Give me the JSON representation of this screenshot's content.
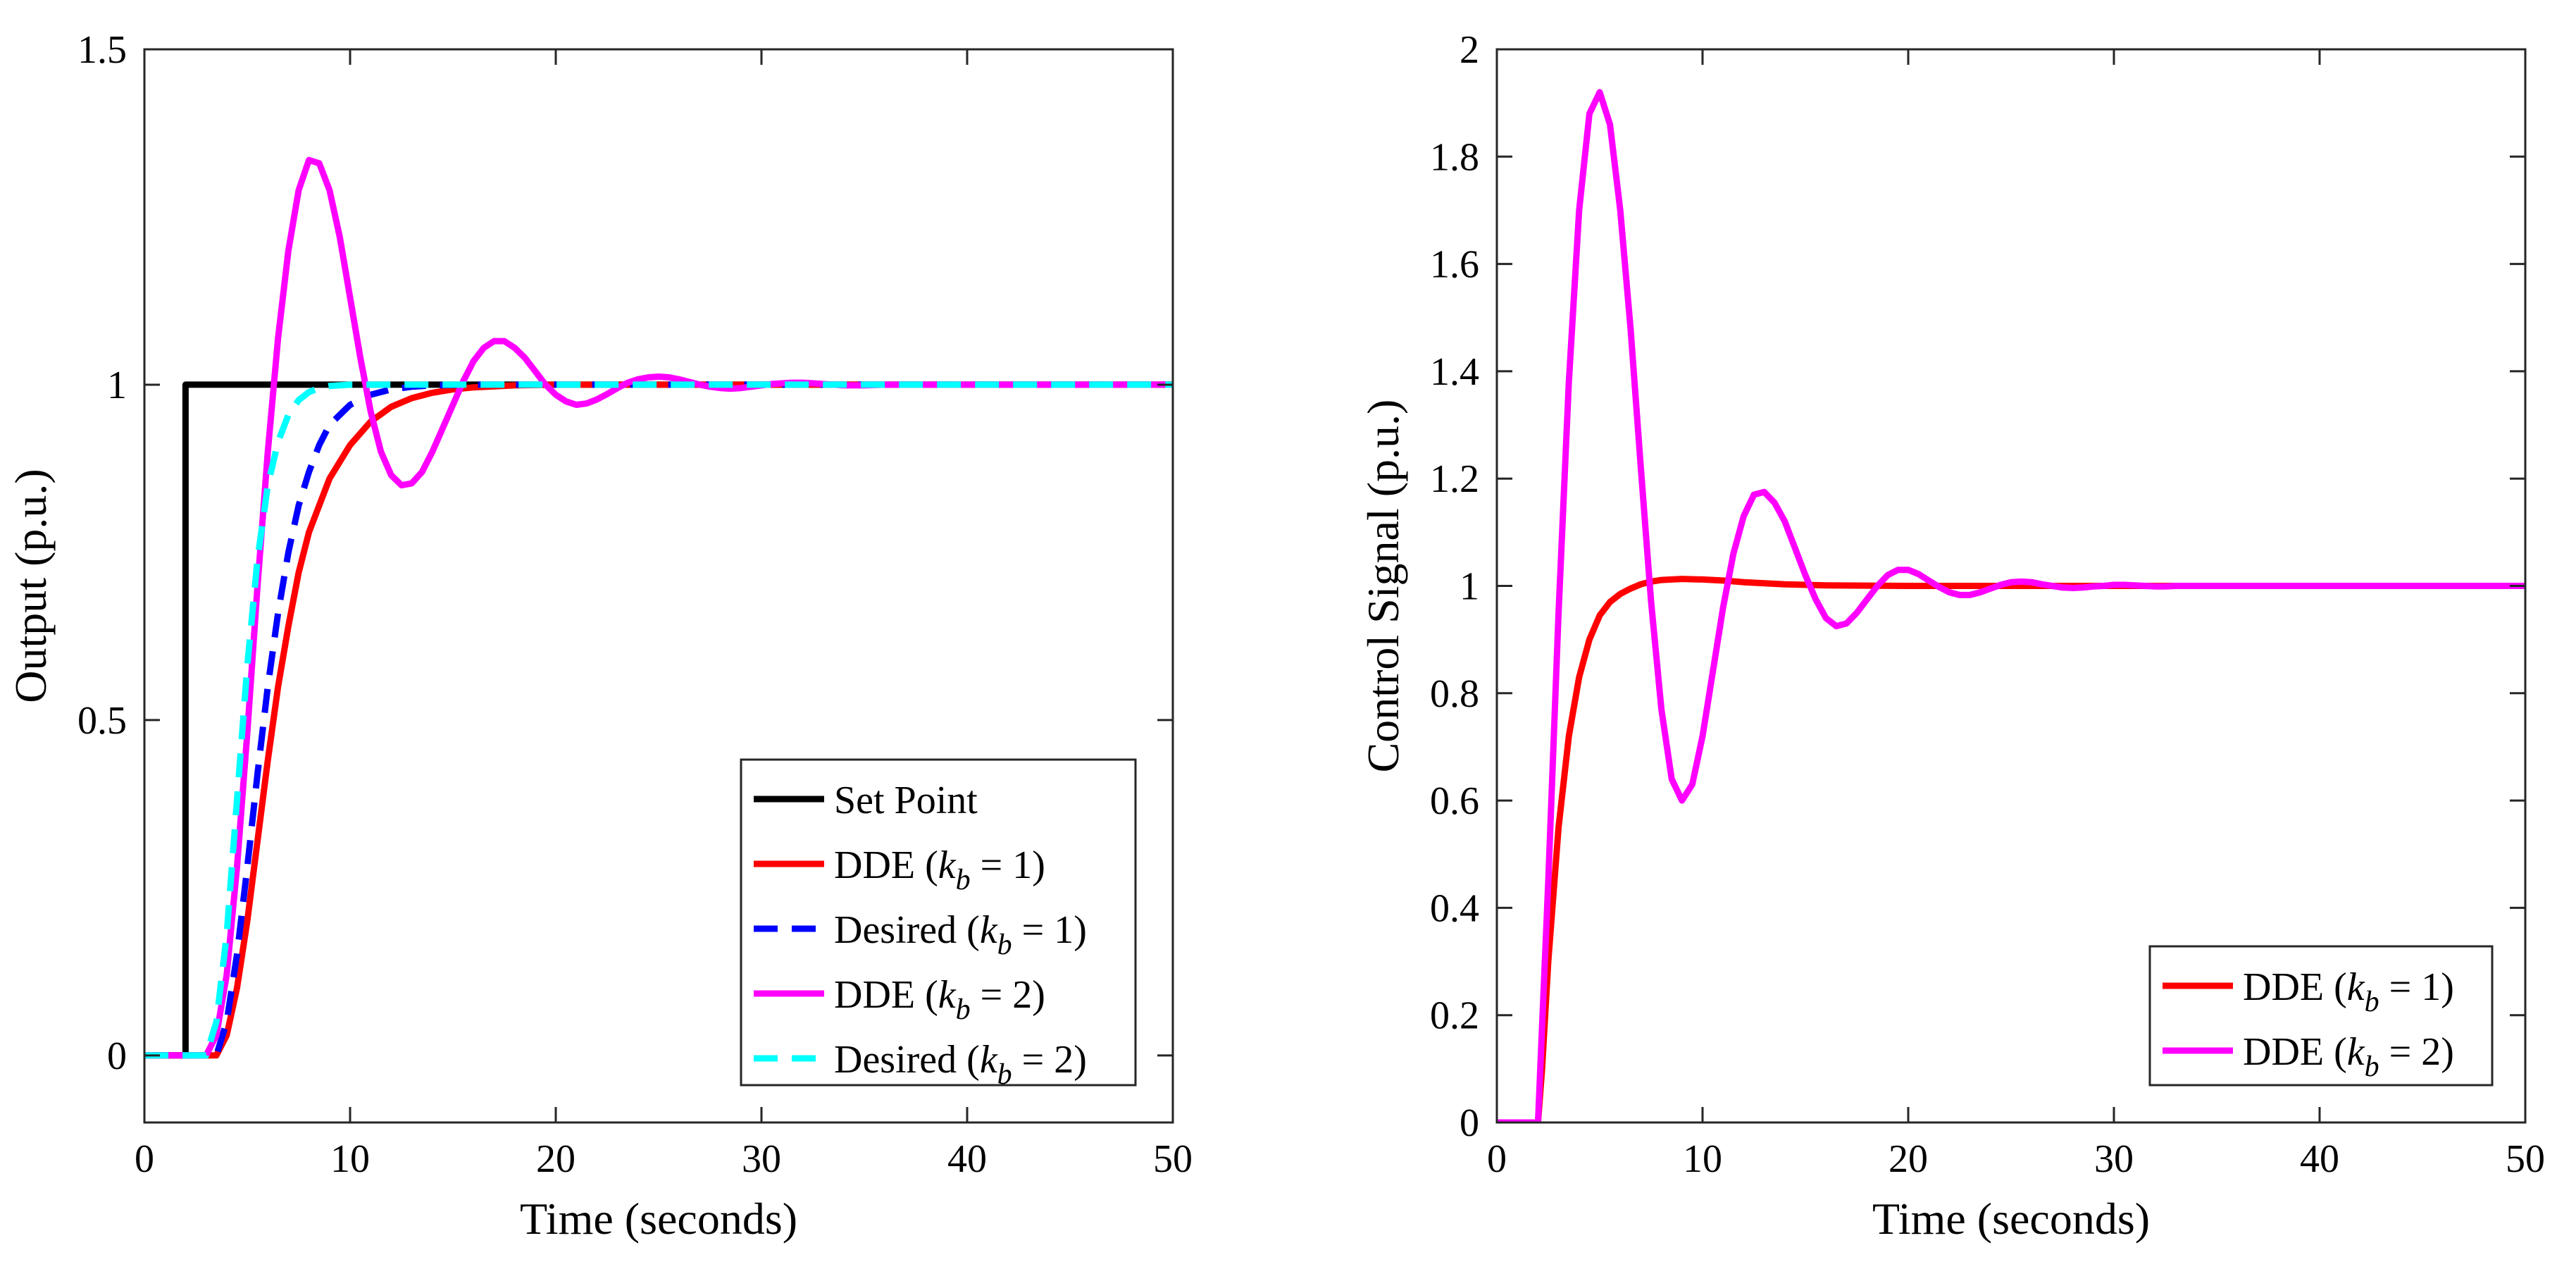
{
  "chart_data": [
    {
      "type": "line",
      "title": "",
      "xlabel": "Time (seconds)",
      "ylabel": "Output (p.u.)",
      "xlim": [
        0,
        50
      ],
      "ylim": [
        -0.1,
        1.5
      ],
      "xticks": [
        "0",
        "10",
        "20",
        "30",
        "40",
        "50"
      ],
      "yticks": [
        "0",
        "0.5",
        "1",
        "1.5"
      ],
      "grid": false,
      "legend_position": "bottom-right",
      "series": [
        {
          "name": "Set Point",
          "legend_main": "Set Point",
          "legend_pre": "",
          "legend_sub": "",
          "legend_post": "",
          "color": "#000000",
          "dash": "solid",
          "x": [
            0,
            2,
            2,
            50
          ],
          "y": [
            0,
            0,
            1,
            1
          ]
        },
        {
          "name": "DDE (k_b = 1)",
          "legend_main": "DDE (",
          "legend_pre": "k",
          "legend_sub": "b",
          "legend_post": " = 1)",
          "color": "#ff0000",
          "dash": "solid",
          "x": [
            0,
            3.5,
            4,
            4.5,
            5,
            5.5,
            6,
            6.5,
            7,
            7.5,
            8,
            9,
            10,
            11,
            12,
            13,
            14,
            15,
            16,
            18,
            20,
            50
          ],
          "y": [
            0,
            0,
            0.03,
            0.1,
            0.2,
            0.32,
            0.44,
            0.55,
            0.64,
            0.72,
            0.78,
            0.86,
            0.91,
            0.945,
            0.967,
            0.98,
            0.988,
            0.993,
            0.996,
            0.999,
            1.0,
            1.0
          ]
        },
        {
          "name": "Desired (k_b = 1)",
          "legend_main": "Desired (",
          "legend_pre": "k",
          "legend_sub": "b",
          "legend_post": " = 1)",
          "color": "#0000ff",
          "dash": "dashed",
          "x": [
            0,
            3.5,
            4,
            4.5,
            5,
            5.5,
            6,
            6.5,
            7,
            7.5,
            8,
            8.5,
            9,
            10,
            11,
            12,
            13,
            14,
            16,
            50
          ],
          "y": [
            0,
            0,
            0.05,
            0.15,
            0.28,
            0.42,
            0.55,
            0.66,
            0.75,
            0.82,
            0.87,
            0.91,
            0.94,
            0.97,
            0.985,
            0.993,
            0.997,
            0.999,
            1.0,
            1.0
          ]
        },
        {
          "name": "DDE (k_b = 2)",
          "legend_main": "DDE (",
          "legend_pre": "k",
          "legend_sub": "b",
          "legend_post": " = 2)",
          "color": "#ff00ff",
          "dash": "solid",
          "x": [
            0,
            3,
            3.5,
            4,
            4.5,
            5,
            5.5,
            6,
            6.5,
            7,
            7.5,
            8,
            8.5,
            9,
            9.5,
            10,
            10.5,
            11,
            11.5,
            12,
            12.5,
            13,
            13.5,
            14,
            14.5,
            15,
            15.5,
            16,
            16.5,
            17,
            17.5,
            18,
            18.5,
            19,
            19.5,
            20,
            20.5,
            21,
            21.5,
            22,
            22.5,
            23,
            23.5,
            24,
            24.5,
            25,
            25.5,
            26,
            26.5,
            27,
            27.5,
            28,
            28.5,
            29,
            29.5,
            30,
            30.5,
            31,
            31.5,
            32,
            32.5,
            33,
            33.5,
            34,
            34.5,
            35,
            36,
            38,
            40,
            50
          ],
          "y": [
            0,
            0,
            0.03,
            0.12,
            0.28,
            0.48,
            0.7,
            0.9,
            1.07,
            1.2,
            1.29,
            1.335,
            1.33,
            1.29,
            1.22,
            1.13,
            1.04,
            0.96,
            0.9,
            0.865,
            0.85,
            0.853,
            0.87,
            0.9,
            0.935,
            0.97,
            1.005,
            1.035,
            1.055,
            1.065,
            1.065,
            1.055,
            1.04,
            1.02,
            1.0,
            0.985,
            0.975,
            0.97,
            0.972,
            0.978,
            0.986,
            0.995,
            1.003,
            1.008,
            1.011,
            1.012,
            1.011,
            1.008,
            1.004,
            1.0,
            0.997,
            0.995,
            0.994,
            0.995,
            0.997,
            0.999,
            1.001,
            1.002,
            1.003,
            1.003,
            1.002,
            1.001,
            1.0,
            0.999,
            0.999,
            0.999,
            1.0,
            1.0,
            1.0,
            1.0
          ]
        },
        {
          "name": "Desired (k_b = 2)",
          "legend_main": "Desired (",
          "legend_pre": "k",
          "legend_sub": "b",
          "legend_post": " = 2)",
          "color": "#00ffff",
          "dash": "dashed",
          "x": [
            0,
            3,
            3.5,
            4,
            4.5,
            5,
            5.5,
            6,
            6.5,
            7,
            7.5,
            8,
            8.5,
            9,
            9.5,
            10,
            11,
            12,
            50
          ],
          "y": [
            0,
            0,
            0.05,
            0.18,
            0.38,
            0.58,
            0.74,
            0.85,
            0.915,
            0.955,
            0.977,
            0.989,
            0.995,
            0.998,
            0.999,
            1.0,
            1.0,
            1.0,
            1.0
          ]
        }
      ]
    },
    {
      "type": "line",
      "title": "",
      "xlabel": "Time (seconds)",
      "ylabel": "Control Signal (p.u.)",
      "xlim": [
        0,
        50
      ],
      "ylim": [
        0,
        2
      ],
      "xticks": [
        "0",
        "10",
        "20",
        "30",
        "40",
        "50"
      ],
      "yticks": [
        "0",
        "0.2",
        "0.4",
        "0.6",
        "0.8",
        "1",
        "1.2",
        "1.4",
        "1.6",
        "1.8",
        "2"
      ],
      "grid": false,
      "legend_position": "bottom-right",
      "series": [
        {
          "name": "DDE (k_b = 1)",
          "legend_main": "DDE (",
          "legend_pre": "k",
          "legend_sub": "b",
          "legend_post": " = 1)",
          "color": "#ff0000",
          "dash": "solid",
          "x": [
            0,
            2,
            2.2,
            2.5,
            3,
            3.5,
            4,
            4.5,
            5,
            5.5,
            6,
            6.5,
            7,
            7.5,
            8,
            9,
            10,
            11,
            12,
            14,
            16,
            20,
            50
          ],
          "y": [
            0,
            0,
            0.1,
            0.3,
            0.55,
            0.72,
            0.83,
            0.9,
            0.945,
            0.97,
            0.985,
            0.995,
            1.003,
            1.008,
            1.011,
            1.013,
            1.012,
            1.01,
            1.007,
            1.003,
            1.001,
            1.0,
            1.0
          ]
        },
        {
          "name": "DDE (k_b = 2)",
          "legend_main": "DDE (",
          "legend_pre": "k",
          "legend_sub": "b",
          "legend_post": " = 2)",
          "color": "#ff00ff",
          "dash": "solid",
          "x": [
            0,
            2,
            2.5,
            3,
            3.5,
            4,
            4.5,
            5,
            5.5,
            6,
            6.5,
            7,
            7.5,
            8,
            8.5,
            9,
            9.5,
            10,
            10.5,
            11,
            11.5,
            12,
            12.5,
            13,
            13.5,
            14,
            14.5,
            15,
            15.5,
            16,
            16.5,
            17,
            17.5,
            18,
            18.5,
            19,
            19.5,
            20,
            20.5,
            21,
            21.5,
            22,
            22.5,
            23,
            23.5,
            24,
            24.5,
            25,
            25.5,
            26,
            26.5,
            27,
            27.5,
            28,
            28.5,
            29,
            29.5,
            30,
            30.5,
            31,
            31.5,
            32,
            32.5,
            33,
            33.5,
            34,
            35,
            36,
            38,
            40,
            50
          ],
          "y": [
            0,
            0,
            0.45,
            0.95,
            1.38,
            1.7,
            1.88,
            1.92,
            1.86,
            1.7,
            1.48,
            1.22,
            0.97,
            0.77,
            0.64,
            0.6,
            0.63,
            0.72,
            0.84,
            0.96,
            1.06,
            1.13,
            1.17,
            1.175,
            1.155,
            1.12,
            1.07,
            1.02,
            0.975,
            0.94,
            0.925,
            0.93,
            0.95,
            0.975,
            1.0,
            1.02,
            1.03,
            1.03,
            1.022,
            1.01,
            0.998,
            0.988,
            0.983,
            0.983,
            0.988,
            0.995,
            1.002,
            1.007,
            1.008,
            1.007,
            1.003,
            1.0,
            0.997,
            0.996,
            0.997,
            0.999,
            1.0,
            1.002,
            1.002,
            1.001,
            1.0,
            0.999,
            0.999,
            1.0,
            1.0,
            1.0,
            1.0,
            1.0,
            1.0,
            1.0,
            1.0
          ]
        }
      ]
    }
  ]
}
